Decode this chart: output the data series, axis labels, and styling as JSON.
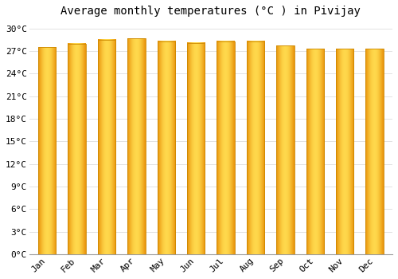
{
  "title": "Average monthly temperatures (°C ) in Pivijay",
  "months": [
    "Jan",
    "Feb",
    "Mar",
    "Apr",
    "May",
    "Jun",
    "Jul",
    "Aug",
    "Sep",
    "Oct",
    "Nov",
    "Dec"
  ],
  "temperatures": [
    27.5,
    28.0,
    28.5,
    28.7,
    28.3,
    28.1,
    28.3,
    28.3,
    27.7,
    27.3,
    27.3,
    27.3
  ],
  "bar_color_edge": "#E8920A",
  "bar_color_center": "#FFD84C",
  "bar_color_mid": "#FFAA15",
  "background_color": "#FFFFFF",
  "grid_color": "#DDDDDD",
  "ylim": [
    0,
    31
  ],
  "yticks": [
    0,
    3,
    6,
    9,
    12,
    15,
    18,
    21,
    24,
    27,
    30
  ],
  "ytick_labels": [
    "0°C",
    "3°C",
    "6°C",
    "9°C",
    "12°C",
    "15°C",
    "18°C",
    "21°C",
    "24°C",
    "27°C",
    "30°C"
  ],
  "title_fontsize": 10,
  "tick_fontsize": 8,
  "font_family": "monospace",
  "bar_width": 0.6,
  "bar_outline_color": "#CC8800"
}
